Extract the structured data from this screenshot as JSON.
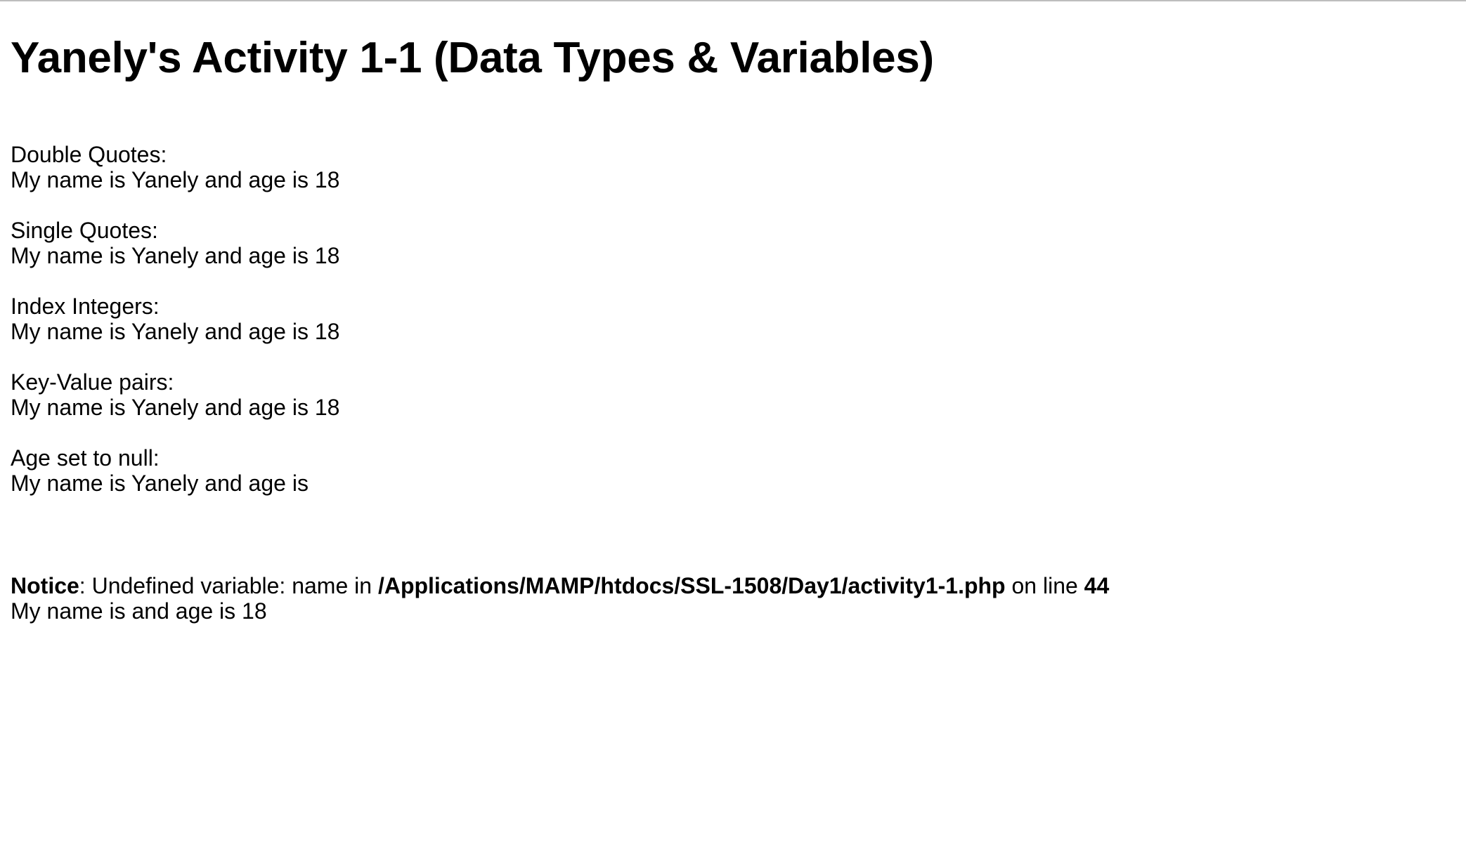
{
  "title": "Yanely's Activity 1-1 (Data Types & Variables)",
  "sections": [
    {
      "label": "Double Quotes:",
      "output": "My name is Yanely and age is 18"
    },
    {
      "label": "Single Quotes:",
      "output": "My name is Yanely and age is 18"
    },
    {
      "label": "Index Integers:",
      "output": "My name is Yanely and age is 18"
    },
    {
      "label": "Key-Value pairs:",
      "output": "My name is Yanely and age is 18"
    },
    {
      "label": "Age set to null:",
      "output": "My name is Yanely and age is"
    }
  ],
  "notice": {
    "label": "Notice",
    "message": ": Undefined variable: name in ",
    "file_path": "/Applications/MAMP/htdocs/SSL-1508/Day1/activity1-1.php",
    "on_line_text": " on line ",
    "line_number": "44",
    "output": "My name is and age is 18"
  }
}
